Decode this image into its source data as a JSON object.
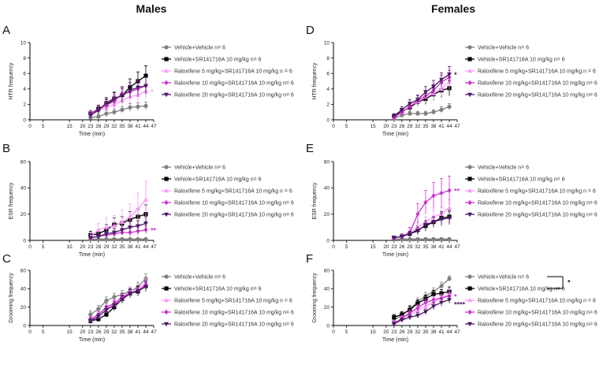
{
  "column_titles": [
    "Males",
    "Females"
  ],
  "series_styles": [
    {
      "color": "#7f7f7f",
      "marker": "circle"
    },
    {
      "color": "#000000",
      "marker": "square"
    },
    {
      "color": "#ff99ff",
      "marker": "triangle-up"
    },
    {
      "color": "#cc33cc",
      "marker": "diamond"
    },
    {
      "color": "#4d1a66",
      "marker": "triangle-down"
    }
  ],
  "chart_data": [
    {
      "type": "line",
      "panel": "A",
      "column": "Males",
      "ylabel": "HTR frequency",
      "xlabel": "Time (min)",
      "ylim": [
        0,
        10
      ],
      "yticks": [
        0,
        2,
        4,
        6,
        8,
        10
      ],
      "xticks": [
        0,
        5,
        15,
        20,
        23,
        26,
        29,
        32,
        35,
        38,
        41,
        44,
        47
      ],
      "x": [
        23,
        26,
        29,
        32,
        35,
        38,
        41,
        44
      ],
      "series": [
        {
          "name": "Vehicle+Vehicle",
          "n": "n= 6",
          "values": [
            0.3,
            0.4,
            0.8,
            1.0,
            1.3,
            1.6,
            1.7,
            1.8
          ],
          "err": [
            0.3,
            0.3,
            0.4,
            0.4,
            0.4,
            0.5,
            0.5,
            0.5
          ]
        },
        {
          "name": "Vehicle+SR141716A 10 mg/kg",
          "n": "n= 6",
          "values": [
            0.8,
            1.4,
            2.0,
            2.6,
            3.2,
            4.2,
            5.0,
            5.7
          ],
          "err": [
            0.4,
            0.5,
            0.7,
            0.9,
            1.0,
            1.1,
            1.2,
            1.3
          ]
        },
        {
          "name": "Raloxifene 5 mg/kg+SR141716A 10 mg/kg",
          "n": "n = 6",
          "values": [
            0.7,
            1.2,
            1.6,
            2.0,
            2.5,
            3.0,
            3.2,
            3.7
          ],
          "err": [
            0.4,
            0.5,
            0.6,
            0.7,
            0.8,
            0.9,
            1.0,
            1.1
          ]
        },
        {
          "name": "Raloxifene 10 mg/kg+SR141716A 10 mg/kg",
          "n": "n= 6",
          "values": [
            0.8,
            1.3,
            1.9,
            2.4,
            3.4,
            3.6,
            4.0,
            4.4
          ],
          "err": [
            0.4,
            0.5,
            0.7,
            0.8,
            0.9,
            0.9,
            1.0,
            1.1
          ]
        },
        {
          "name": "Raloxifene 20 mg/kg+SR141716A 10 mg/kg",
          "n": "n= 6",
          "values": [
            0.6,
            1.2,
            2.2,
            2.8,
            3.1,
            3.8,
            4.2,
            4.4
          ],
          "err": [
            0.4,
            0.5,
            0.7,
            0.8,
            0.9,
            1.0,
            1.0,
            1.1
          ]
        }
      ],
      "annotations": [
        {
          "text": "*",
          "series": 2
        }
      ],
      "bracket": false
    },
    {
      "type": "line",
      "panel": "B",
      "column": "Males",
      "ylabel": "ESR frequency",
      "xlabel": "Time (min)",
      "ylim": [
        0,
        60
      ],
      "yticks": [
        0,
        20,
        40,
        60
      ],
      "xticks": [
        0,
        5,
        15,
        20,
        23,
        26,
        29,
        32,
        35,
        38,
        41,
        44,
        47
      ],
      "x": [
        23,
        26,
        29,
        32,
        35,
        38,
        41,
        44
      ],
      "series": [
        {
          "name": "Vehicle+Vehicle",
          "n": "n= 6",
          "values": [
            1,
            1,
            1,
            1,
            1,
            1,
            1,
            1
          ],
          "err": [
            0.5,
            0.5,
            0.5,
            0.5,
            0.5,
            0.5,
            0.5,
            0.5
          ]
        },
        {
          "name": "Vehicle+SR141716A 10 mg/kg",
          "n": "n= 6",
          "values": [
            4,
            5,
            8,
            12,
            13,
            16,
            18,
            20
          ],
          "err": [
            3,
            3,
            4,
            5,
            5,
            6,
            6,
            7
          ]
        },
        {
          "name": "Raloxifene 5 mg/kg+SR141716A 10 mg/kg",
          "n": "n = 6",
          "values": [
            3,
            8,
            10,
            11,
            14,
            18,
            24,
            31
          ],
          "err": [
            3,
            5,
            7,
            8,
            9,
            10,
            12,
            14
          ]
        },
        {
          "name": "Raloxifene 10 mg/kg+SR141716A 10 mg/kg",
          "n": "n= 6",
          "values": [
            2,
            3,
            4,
            5,
            6,
            6,
            7,
            8
          ],
          "err": [
            1,
            1,
            2,
            2,
            2,
            3,
            3,
            3
          ]
        },
        {
          "name": "Raloxifene 20 mg/kg+SR141716A 10 mg/kg",
          "n": "n= 6",
          "values": [
            2,
            3,
            5,
            6,
            8,
            10,
            11,
            13
          ],
          "err": [
            1,
            2,
            2,
            3,
            3,
            4,
            4,
            5
          ]
        }
      ],
      "annotations": [
        {
          "text": "**",
          "series": 3
        }
      ],
      "bracket": false
    },
    {
      "type": "line",
      "panel": "C",
      "column": "Males",
      "ylabel": "Grooming frequency",
      "xlabel": "Time (min)",
      "ylim": [
        0,
        60
      ],
      "yticks": [
        0,
        20,
        40,
        60
      ],
      "xticks": [
        0,
        5,
        15,
        20,
        23,
        26,
        29,
        32,
        35,
        38,
        41,
        44,
        47
      ],
      "x": [
        23,
        26,
        29,
        32,
        35,
        38,
        41,
        44
      ],
      "series": [
        {
          "name": "Vehicle+Vehicle",
          "n": "n= 6",
          "values": [
            12,
            18,
            27,
            31,
            34,
            37,
            42,
            51
          ],
          "err": [
            4,
            4,
            4,
            4,
            4,
            4,
            5,
            5
          ]
        },
        {
          "name": "Vehicle+SR141716A 10 mg/kg",
          "n": "n= 6",
          "values": [
            5,
            7,
            12,
            20,
            29,
            35,
            37,
            43
          ],
          "err": [
            3,
            3,
            3,
            4,
            4,
            4,
            5,
            5
          ]
        },
        {
          "name": "Raloxifene 5 mg/kg+SR141716A 10 mg/kg",
          "n": "n = 6",
          "values": [
            6,
            10,
            18,
            23,
            30,
            37,
            40,
            46
          ],
          "err": [
            3,
            3,
            4,
            4,
            4,
            5,
            5,
            5
          ]
        },
        {
          "name": "Raloxifene 10 mg/kg+SR141716A 10 mg/kg",
          "n": "n= 6",
          "values": [
            7,
            12,
            20,
            24,
            31,
            35,
            38,
            44
          ],
          "err": [
            3,
            3,
            4,
            4,
            4,
            5,
            5,
            5
          ]
        },
        {
          "name": "Raloxifene 20 mg/kg+SR141716A 10 mg/kg",
          "n": "n= 6",
          "values": [
            5,
            10,
            17,
            22,
            28,
            35,
            38,
            42
          ],
          "err": [
            3,
            3,
            4,
            4,
            4,
            5,
            5,
            5
          ]
        }
      ],
      "annotations": [],
      "bracket": false
    },
    {
      "type": "line",
      "panel": "D",
      "column": "Females",
      "ylabel": "HTR frequency",
      "xlabel": "Time (min)",
      "ylim": [
        0,
        10
      ],
      "yticks": [
        0,
        2,
        4,
        6,
        8,
        10
      ],
      "xticks": [
        0,
        5,
        15,
        20,
        23,
        26,
        29,
        32,
        35,
        38,
        41,
        44,
        47
      ],
      "x": [
        23,
        26,
        29,
        32,
        35,
        38,
        41,
        44
      ],
      "series": [
        {
          "name": "Vehicle+Vehicle",
          "n": "n= 6",
          "values": [
            0.2,
            0.6,
            0.8,
            0.8,
            0.8,
            1.0,
            1.3,
            1.7
          ],
          "err": [
            0.2,
            0.3,
            0.3,
            0.3,
            0.3,
            0.3,
            0.4,
            0.4
          ]
        },
        {
          "name": "Vehicle+SR141716A 10 mg/kg",
          "n": "n= 6",
          "values": [
            0.4,
            1.1,
            1.6,
            2.3,
            2.7,
            3.3,
            3.8,
            4.1
          ],
          "err": [
            0.3,
            0.4,
            0.5,
            0.6,
            0.7,
            0.8,
            0.9,
            1.0
          ]
        },
        {
          "name": "Raloxifene 5 mg/kg+SR141716A 10 mg/kg",
          "n": "n = 6",
          "values": [
            0.3,
            1.0,
            1.8,
            2.3,
            3.0,
            3.4,
            4.0,
            4.9
          ],
          "err": [
            0.3,
            0.4,
            0.5,
            0.6,
            0.7,
            0.8,
            0.9,
            1.0
          ]
        },
        {
          "name": "Raloxifene 10 mg/kg+SR141716A 10 mg/kg",
          "n": "n= 6",
          "values": [
            0.3,
            1.0,
            1.7,
            2.5,
            3.1,
            3.8,
            4.9,
            5.5
          ],
          "err": [
            0.3,
            0.4,
            0.5,
            0.6,
            0.7,
            0.8,
            0.9,
            0.9
          ]
        },
        {
          "name": "Raloxifene 20 mg/kg+SR141716A 10 mg/kg",
          "n": "n= 6",
          "values": [
            0.5,
            1.3,
            2.1,
            2.6,
            3.6,
            4.3,
            5.2,
            5.9
          ],
          "err": [
            0.3,
            0.4,
            0.5,
            0.6,
            0.7,
            0.8,
            0.9,
            1.0
          ]
        }
      ],
      "annotations": [
        {
          "text": "*",
          "series": 4
        }
      ],
      "bracket": false
    },
    {
      "type": "line",
      "panel": "E",
      "column": "Females",
      "ylabel": "ESR frequency",
      "xlabel": "Time (min)",
      "ylim": [
        0,
        60
      ],
      "yticks": [
        0,
        20,
        40,
        60
      ],
      "xticks": [
        0,
        5,
        15,
        20,
        23,
        26,
        29,
        32,
        35,
        38,
        41,
        44,
        47
      ],
      "x": [
        23,
        26,
        29,
        32,
        35,
        38,
        41,
        44
      ],
      "series": [
        {
          "name": "Vehicle+Vehicle",
          "n": "n= 6",
          "values": [
            1,
            1,
            1,
            1,
            1,
            1,
            1,
            1
          ],
          "err": [
            0.5,
            0.5,
            0.5,
            0.5,
            0.5,
            0.5,
            0.5,
            0.5
          ]
        },
        {
          "name": "Vehicle+SR141716A 10 mg/kg",
          "n": "n= 6",
          "values": [
            2,
            3,
            5,
            8,
            11,
            14,
            17,
            18
          ],
          "err": [
            1,
            1,
            2,
            3,
            4,
            4,
            5,
            5
          ]
        },
        {
          "name": "Raloxifene 5 mg/kg+SR141716A 10 mg/kg",
          "n": "n = 6",
          "values": [
            2,
            3,
            6,
            10,
            14,
            18,
            20,
            25
          ],
          "err": [
            1,
            2,
            3,
            4,
            4,
            5,
            5,
            6
          ]
        },
        {
          "name": "Raloxifene 10 mg/kg+SR141716A 10 mg/kg",
          "n": "n= 6",
          "values": [
            2,
            3,
            6,
            20,
            29,
            34,
            36,
            38
          ],
          "err": [
            1,
            2,
            4,
            8,
            9,
            10,
            11,
            11
          ]
        },
        {
          "name": "Raloxifene 20 mg/kg+SR141716A 10 mg/kg",
          "n": "n= 6",
          "values": [
            2,
            3,
            5,
            7,
            12,
            14,
            16,
            17
          ],
          "err": [
            1,
            1,
            2,
            3,
            3,
            4,
            5,
            5
          ]
        }
      ],
      "annotations": [
        {
          "text": "**",
          "series": 3
        }
      ],
      "bracket": false
    },
    {
      "type": "line",
      "panel": "F",
      "column": "Females",
      "ylabel": "Grooming frequency",
      "xlabel": "Time (min)",
      "ylim": [
        0,
        60
      ],
      "yticks": [
        0,
        20,
        40,
        60
      ],
      "xticks": [
        0,
        5,
        15,
        20,
        23,
        26,
        29,
        32,
        35,
        38,
        41,
        44,
        47
      ],
      "x": [
        23,
        26,
        29,
        32,
        35,
        38,
        41,
        44
      ],
      "series": [
        {
          "name": "Vehicle+Vehicle",
          "n": "n= 6",
          "values": [
            6,
            11,
            18,
            26,
            32,
            37,
            43,
            51
          ],
          "err": [
            3,
            3,
            4,
            4,
            4,
            4,
            4,
            3
          ]
        },
        {
          "name": "Vehicle+SR141716A 10 mg/kg",
          "n": "n= 6",
          "values": [
            9,
            12,
            17,
            24,
            29,
            34,
            35,
            37
          ],
          "err": [
            3,
            3,
            4,
            4,
            4,
            4,
            4,
            5
          ]
        },
        {
          "name": "Raloxifene 5 mg/kg+SR141716A 10 mg/kg",
          "n": "n = 6",
          "values": [
            3,
            7,
            12,
            16,
            21,
            25,
            30,
            34
          ],
          "err": [
            2,
            3,
            3,
            4,
            4,
            4,
            4,
            5
          ]
        },
        {
          "name": "Raloxifene 10 mg/kg+SR141716A 10 mg/kg",
          "n": "n= 6",
          "values": [
            2,
            8,
            14,
            19,
            25,
            28,
            30,
            32
          ],
          "err": [
            2,
            3,
            3,
            4,
            4,
            4,
            4,
            4
          ]
        },
        {
          "name": "Raloxifene 20 mg/kg+SR141716A 10 mg/kg",
          "n": "n= 6",
          "values": [
            2,
            6,
            9,
            11,
            15,
            21,
            25,
            28
          ],
          "err": [
            2,
            2,
            3,
            3,
            3,
            4,
            4,
            4
          ]
        }
      ],
      "annotations": [
        {
          "text": "*",
          "series": 3
        },
        {
          "text": "****",
          "series": 4
        }
      ],
      "bracket": true,
      "bracket_label": "*"
    }
  ]
}
